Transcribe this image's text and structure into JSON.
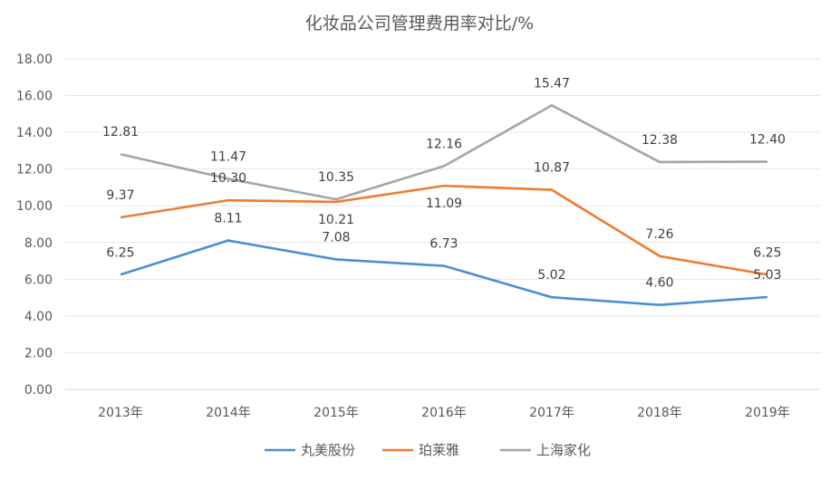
{
  "chart_data": {
    "type": "line",
    "title": "化妆品公司管理费用率对比/%",
    "categories": [
      "2013年",
      "2014年",
      "2015年",
      "2016年",
      "2017年",
      "2018年",
      "2019年"
    ],
    "ylim": [
      0,
      18
    ],
    "yticks": [
      "0.00",
      "2.00",
      "4.00",
      "6.00",
      "8.00",
      "10.00",
      "12.00",
      "14.00",
      "16.00",
      "18.00"
    ],
    "grid": true,
    "legend": "bottom",
    "series": [
      {
        "name": "丸美股份",
        "color": "#4a8fd4",
        "values": [
          6.25,
          8.11,
          7.08,
          6.73,
          5.02,
          4.6,
          5.03
        ],
        "labels": [
          "6.25",
          "8.11",
          "7.08",
          "6.73",
          "5.02",
          "4.60",
          "5.03"
        ]
      },
      {
        "name": "珀莱雅",
        "color": "#ed7d31",
        "values": [
          9.37,
          10.3,
          10.21,
          11.09,
          10.87,
          7.26,
          6.25
        ],
        "labels": [
          "9.37",
          "10.30",
          "10.21",
          "11.09",
          "10.87",
          "7.26",
          "6.25"
        ]
      },
      {
        "name": "上海家化",
        "color": "#a5a5a5",
        "values": [
          12.81,
          11.47,
          10.35,
          12.16,
          15.47,
          12.38,
          12.4
        ],
        "labels": [
          "12.81",
          "11.47",
          "10.35",
          "12.16",
          "15.47",
          "12.38",
          "12.40"
        ]
      }
    ]
  }
}
